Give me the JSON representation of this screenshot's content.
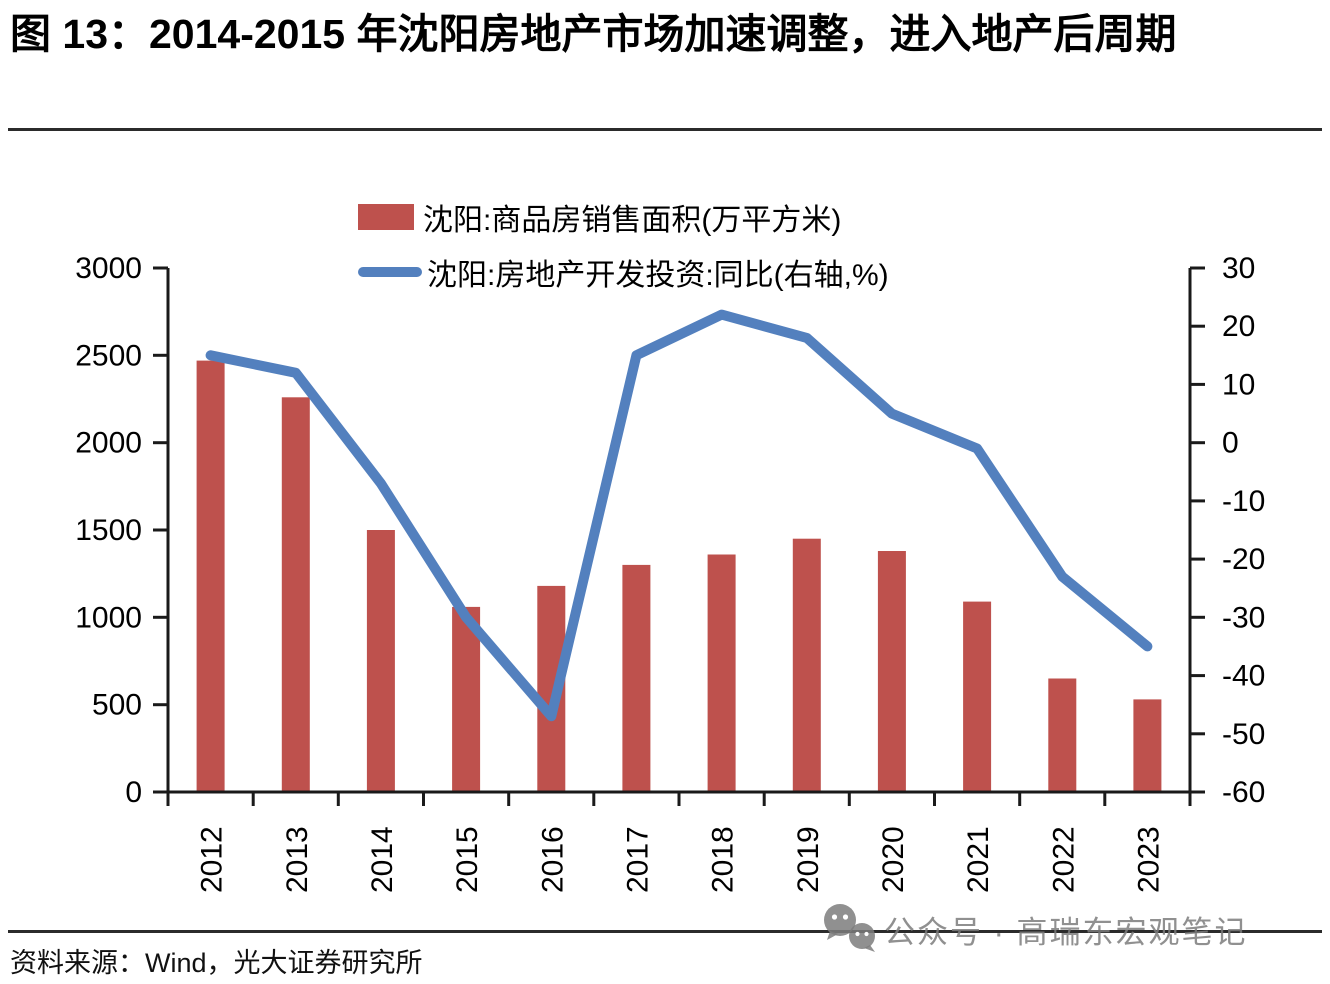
{
  "figure": {
    "title": "图 13：2014-2015 年沈阳房地产市场加速调整，进入地产后周期",
    "source_note": "资料来源：Wind，光大证券研究所",
    "watermark": {
      "icon": "wechat-icon",
      "text": "公众号 · 高瑞东宏观笔记"
    }
  },
  "legend": {
    "items": [
      {
        "label": "沈阳:商品房销售面积(万平方米)",
        "marker": "bar",
        "color": "#BE514D"
      },
      {
        "label": "沈阳:房地产开发投资:同比(右轴,%)",
        "marker": "line",
        "color": "#5380BE"
      }
    ]
  },
  "chart_data": {
    "type": "bar",
    "subtype": "bar+line dual-axis combo",
    "categories": [
      "2012",
      "2013",
      "2014",
      "2015",
      "2016",
      "2017",
      "2018",
      "2019",
      "2020",
      "2021",
      "2022",
      "2023"
    ],
    "series": [
      {
        "name": "沈阳:商品房销售面积(万平方米)",
        "type": "bar",
        "axis": "left",
        "color": "#BE514D",
        "values": [
          2470,
          2260,
          1500,
          1060,
          1180,
          1300,
          1360,
          1450,
          1380,
          1090,
          650,
          530
        ]
      },
      {
        "name": "沈阳:房地产开发投资:同比(右轴,%)",
        "type": "line",
        "axis": "right",
        "color": "#5380BE",
        "values": [
          15,
          12,
          -7,
          -30,
          -47,
          15,
          22,
          18,
          5,
          -1,
          -23,
          -35
        ]
      }
    ],
    "left_axis": {
      "min": 0,
      "max": 3000,
      "step": 500,
      "tick_labels": [
        "0",
        "500",
        "1000",
        "1500",
        "2000",
        "2500",
        "3000"
      ]
    },
    "right_axis": {
      "min": -60,
      "max": 30,
      "step": 10,
      "tick_labels": [
        "-60",
        "-50",
        "-40",
        "-30",
        "-20",
        "-10",
        "0",
        "10",
        "20",
        "30"
      ]
    },
    "grid": false,
    "legend_position": "top-center",
    "x_tick_label_rotation": -90
  }
}
